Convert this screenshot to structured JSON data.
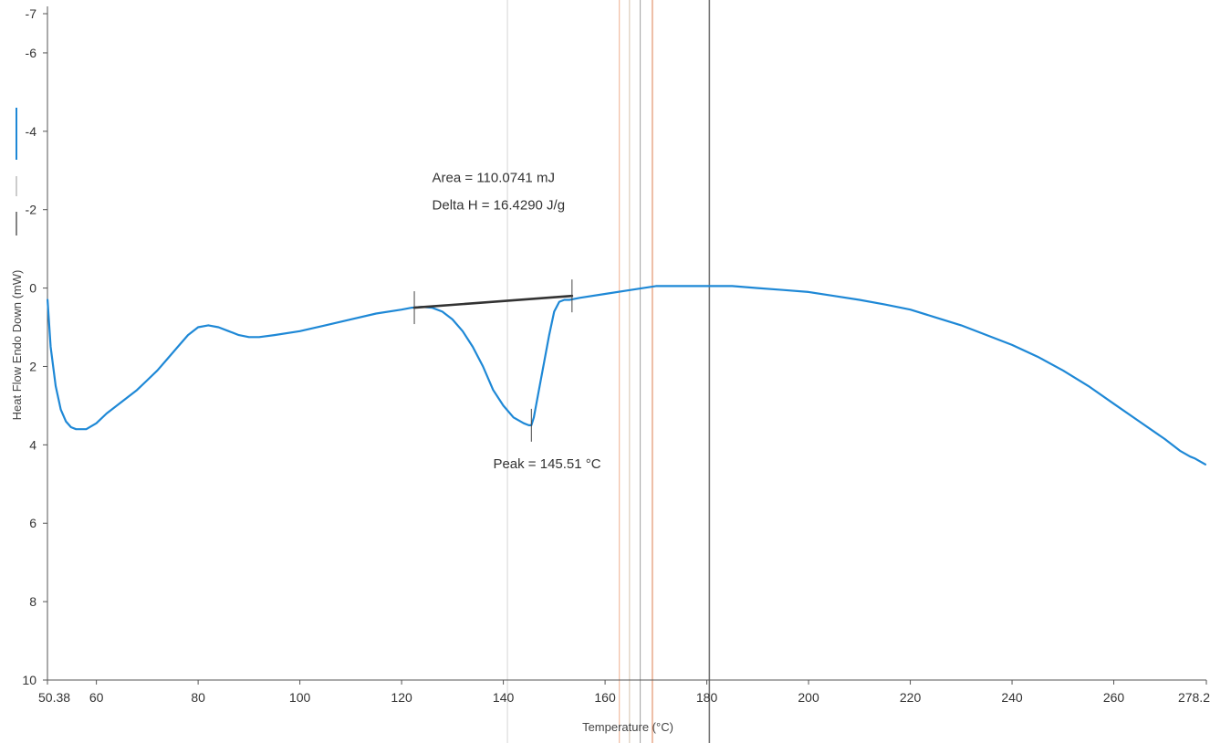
{
  "chart_data": {
    "type": "line",
    "title": "",
    "xlabel": "Temperature (°C)",
    "ylabel": "Heat Flow Endo Down (mW)",
    "xlim": [
      50.38,
      278.2
    ],
    "ylim": [
      -7,
      10
    ],
    "y_inverted": true,
    "x_tick_labels": [
      "50.38",
      "60",
      "80",
      "100",
      "120",
      "140",
      "160",
      "180",
      "200",
      "220",
      "240",
      "260",
      "278.2"
    ],
    "x_ticks": [
      50.38,
      60,
      80,
      100,
      120,
      140,
      160,
      180,
      200,
      220,
      240,
      260,
      278.2
    ],
    "y_tick_labels": [
      "-7",
      "-6",
      "-4",
      "-2",
      "0",
      "2",
      "4",
      "6",
      "8",
      "10"
    ],
    "y_ticks": [
      -7,
      -6,
      -4,
      -2,
      0,
      2,
      4,
      6,
      8,
      10
    ],
    "grid": false,
    "series": [
      {
        "color": "#1e88d6",
        "x": [
          50.4,
          51,
          52,
          53,
          54,
          55,
          56,
          58,
          60,
          62,
          65,
          68,
          70,
          72,
          74,
          76,
          78,
          80,
          82,
          84,
          86,
          88,
          90,
          92,
          95,
          100,
          105,
          110,
          115,
          120,
          122,
          124,
          126,
          128,
          130,
          132,
          134,
          136,
          138,
          140,
          142,
          144,
          145,
          145.51,
          146,
          147,
          148,
          149,
          150,
          151,
          152,
          153,
          155,
          160,
          165,
          170,
          175,
          180,
          185,
          190,
          195,
          200,
          205,
          210,
          215,
          220,
          225,
          230,
          235,
          240,
          245,
          250,
          255,
          260,
          265,
          270,
          273,
          275,
          276,
          278
        ],
        "y": [
          0.3,
          1.5,
          2.5,
          3.1,
          3.4,
          3.55,
          3.6,
          3.6,
          3.45,
          3.2,
          2.9,
          2.6,
          2.35,
          2.1,
          1.8,
          1.5,
          1.2,
          1.0,
          0.95,
          1.0,
          1.1,
          1.2,
          1.25,
          1.25,
          1.2,
          1.1,
          0.95,
          0.8,
          0.65,
          0.55,
          0.5,
          0.48,
          0.5,
          0.6,
          0.8,
          1.1,
          1.5,
          2.0,
          2.6,
          3.0,
          3.3,
          3.45,
          3.5,
          3.5,
          3.3,
          2.6,
          1.9,
          1.2,
          0.6,
          0.35,
          0.3,
          0.3,
          0.25,
          0.15,
          0.05,
          -0.05,
          -0.05,
          -0.05,
          -0.05,
          0.0,
          0.05,
          0.1,
          0.2,
          0.3,
          0.42,
          0.55,
          0.75,
          0.95,
          1.2,
          1.45,
          1.75,
          2.1,
          2.5,
          2.95,
          3.4,
          3.85,
          4.15,
          4.3,
          4.35,
          4.5
        ]
      },
      {
        "color": "#333333",
        "x": [
          122.5,
          153.5
        ],
        "y": [
          0.5,
          0.2
        ]
      }
    ],
    "markers": [
      {
        "x": 122.5,
        "y": 0.5
      },
      {
        "x": 153.5,
        "y": 0.2
      },
      {
        "x": 145.51,
        "y": 3.5
      }
    ],
    "vertical_lines": [
      {
        "x": 140.8,
        "color": "#d9d9d9"
      },
      {
        "x": 162.8,
        "color": "#f0b79a"
      },
      {
        "x": 164.8,
        "color": "#d9c7b5"
      },
      {
        "x": 166.9,
        "color": "#aaaaaa"
      },
      {
        "x": 169.3,
        "color": "#e08a60"
      },
      {
        "x": 180.5,
        "color": "#777777"
      }
    ],
    "legend": [
      {
        "color": "#1e88d6"
      },
      {
        "color": "#aaaaaa"
      },
      {
        "color": "#333333"
      }
    ],
    "annotations": [
      {
        "id": "area",
        "text": "Area = 110.0741 mJ",
        "x": 126,
        "y": -2.7
      },
      {
        "id": "deltah",
        "text": "Delta H = 16.4290 J/g",
        "x": 126,
        "y": -2.0
      },
      {
        "id": "peak",
        "text": "Peak = 145.51 °C",
        "x": 138,
        "y": 4.6
      }
    ]
  }
}
